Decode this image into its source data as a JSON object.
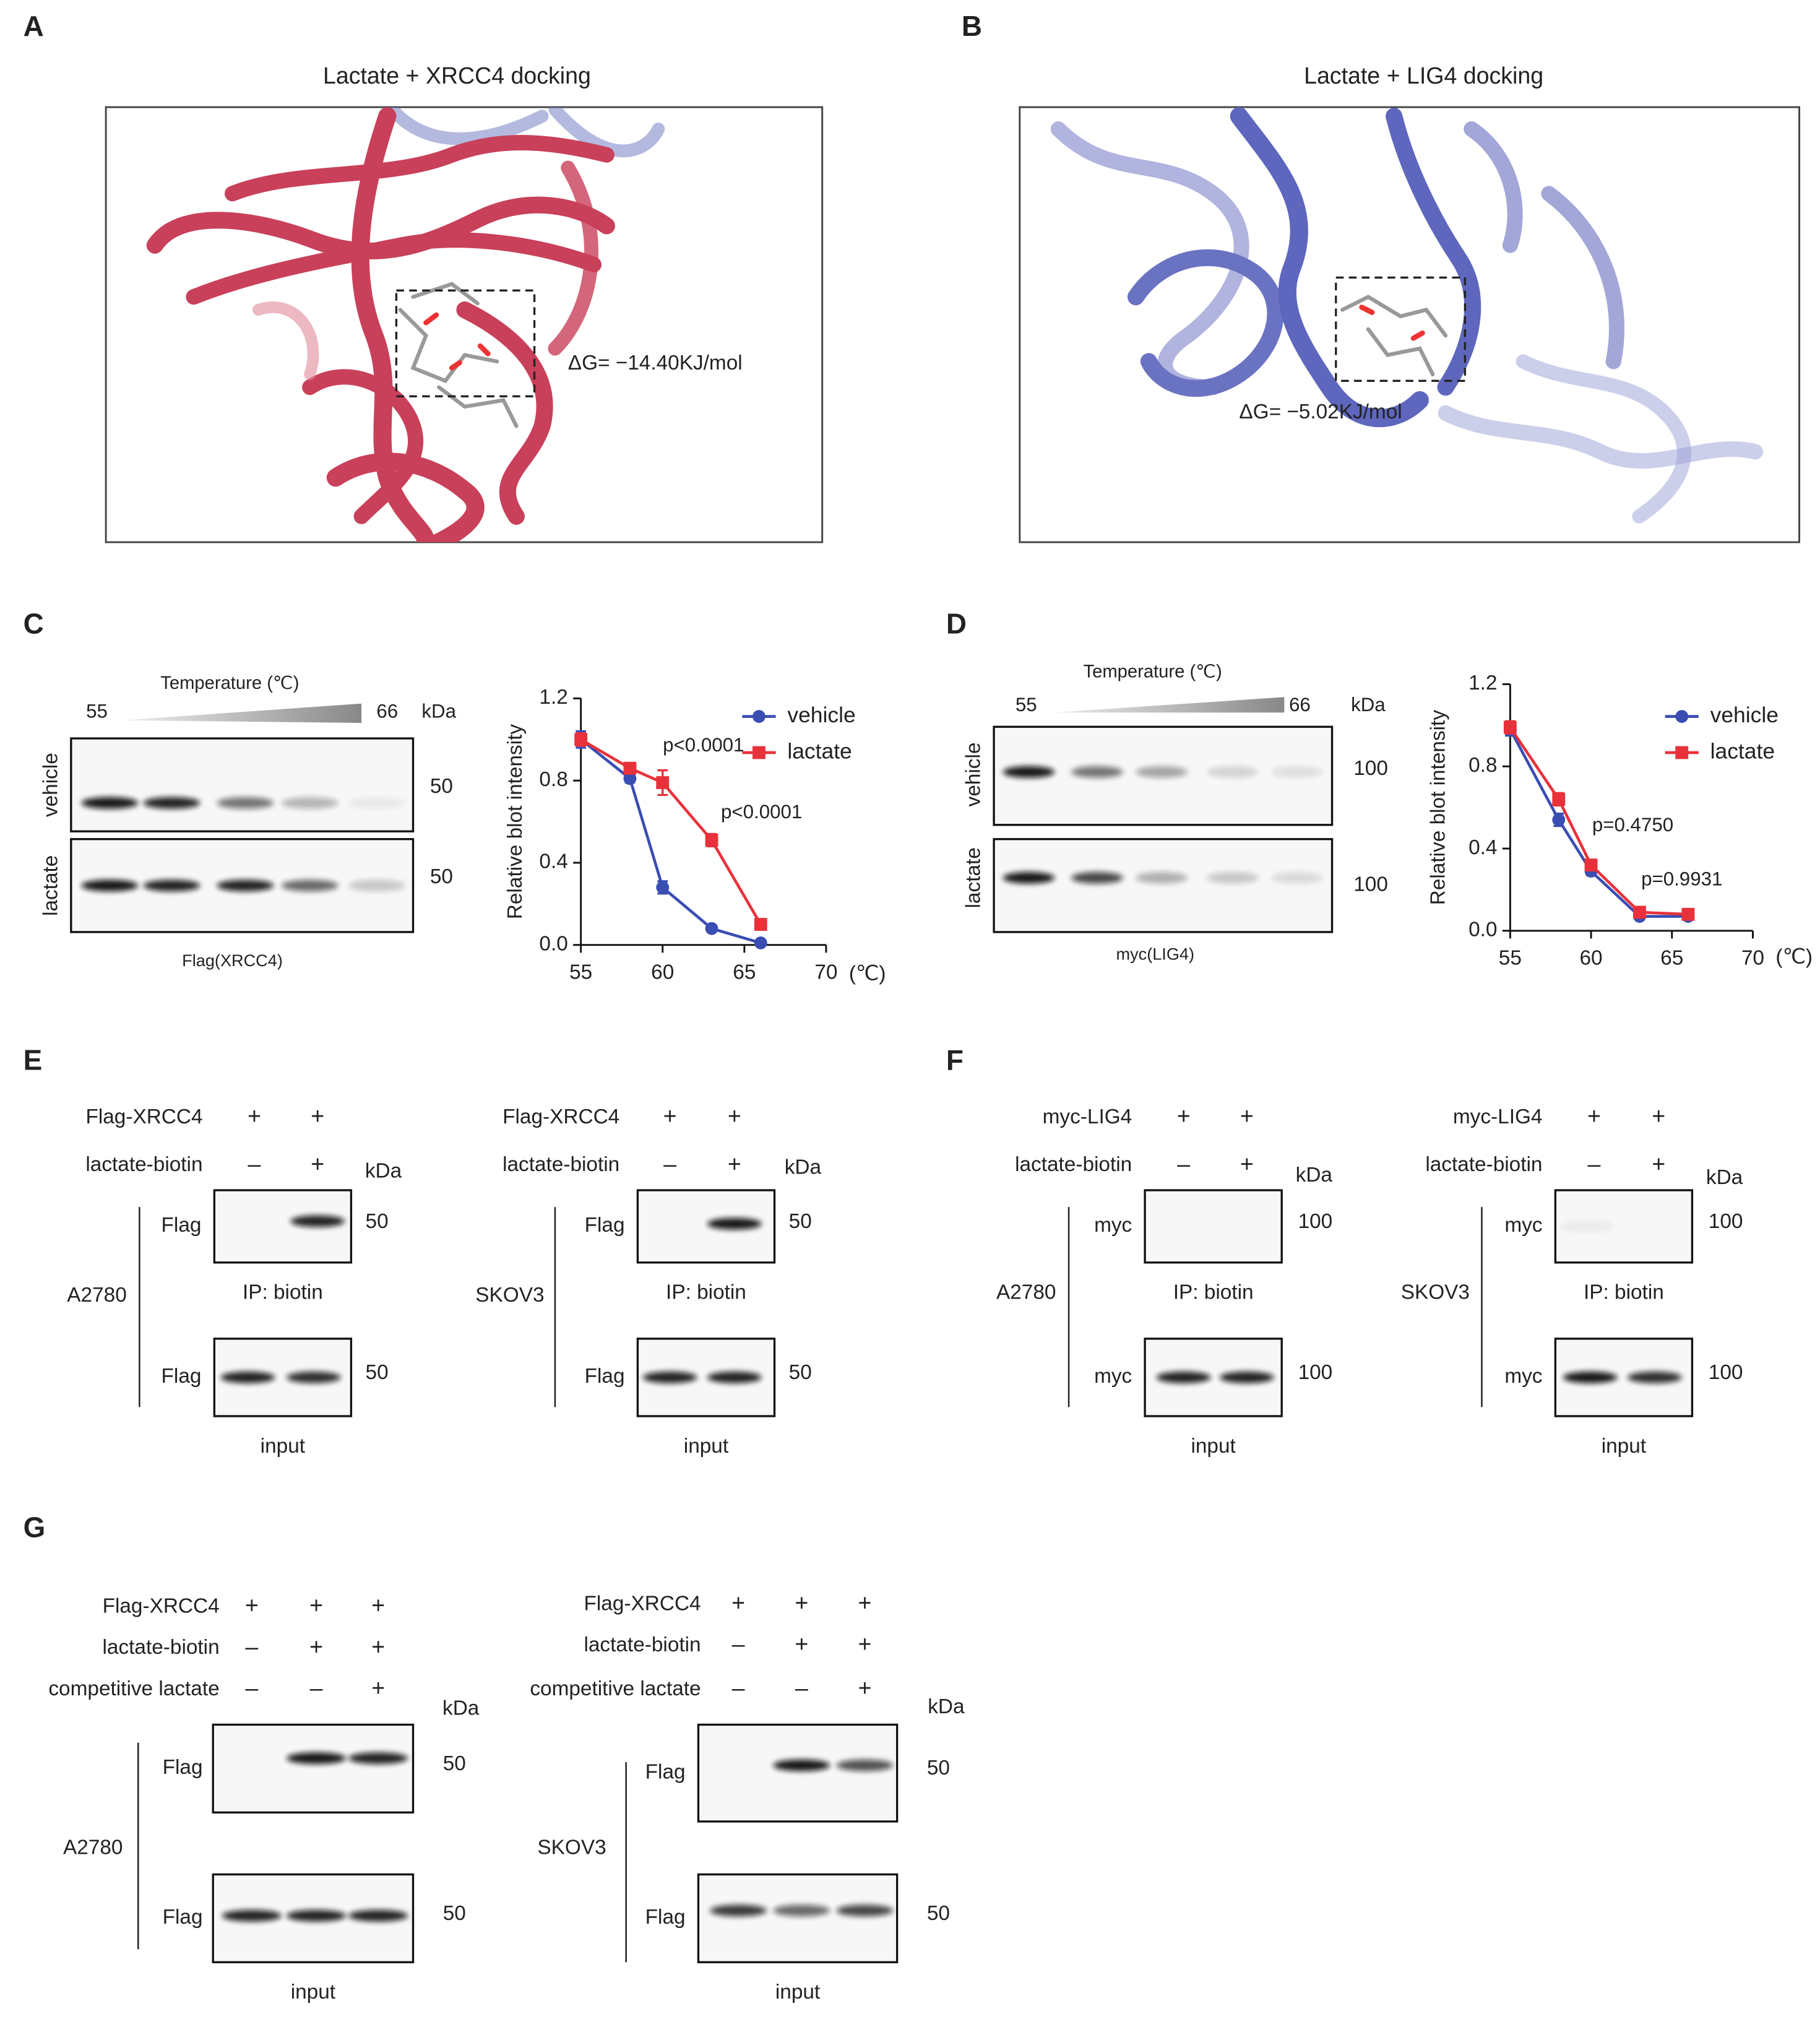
{
  "panel_labels": [
    "A",
    "B",
    "C",
    "D",
    "E",
    "F",
    "G"
  ],
  "docking": [
    {
      "title": "Lactate + XRCC4  docking",
      "energy": "ΔG= −14.40KJ/mol"
    },
    {
      "title": "Lactate + LIG4  docking",
      "energy": "ΔG= −5.02KJ/mol"
    }
  ],
  "cetsa_blots": [
    {
      "temperature_label": "Temperature (℃)",
      "low": "55",
      "high": "66",
      "unit": "kDa",
      "rows": [
        {
          "label": "vehicle",
          "mw": "50"
        },
        {
          "label": "lactate",
          "mw": "50"
        }
      ],
      "caption": "Flag(XRCC4)"
    },
    {
      "temperature_label": "Temperature (℃)",
      "low": "55",
      "high": "66",
      "unit": "kDa",
      "rows": [
        {
          "label": "vehicle",
          "mw": "100"
        },
        {
          "label": "lactate",
          "mw": "100"
        }
      ],
      "caption": "myc(LIG4)"
    }
  ],
  "chart_data": [
    {
      "type": "line",
      "y_label": "Relative blot intensity",
      "x_unit": "(℃)",
      "x": [
        55,
        58,
        60,
        63,
        66
      ],
      "xlim": [
        55,
        70
      ],
      "xticks": [
        55,
        60,
        65,
        70
      ],
      "ylim": [
        0,
        1.2
      ],
      "yticks": [
        {
          "value": 0,
          "label": "0.0"
        },
        0.4,
        0.8,
        1.2
      ],
      "legend": "upper right",
      "series": [
        {
          "name": "vehicle",
          "color": "#3a4db3",
          "marker": "circle",
          "values": [
            1.0,
            0.81,
            0.28,
            0.08,
            0.01
          ],
          "errors": [
            0.04,
            0.02,
            0.03,
            0.01,
            0.01
          ]
        },
        {
          "name": "lactate",
          "color": "#e8313a",
          "marker": "square",
          "values": [
            1.0,
            0.86,
            0.79,
            0.51,
            0.1
          ],
          "errors": [
            0.03,
            0.02,
            0.06,
            0.03,
            0.01
          ]
        }
      ],
      "annotations": [
        "p<0.0001",
        "p<0.0001"
      ]
    },
    {
      "type": "line",
      "y_label": "Relative blot intensity",
      "x_unit": "(℃)",
      "x": [
        55,
        58,
        60,
        63,
        66
      ],
      "xlim": [
        55,
        70
      ],
      "xticks": [
        55,
        60,
        65,
        70
      ],
      "ylim": [
        0,
        1.2
      ],
      "yticks": [
        {
          "value": 0,
          "label": "0.0"
        },
        0.4,
        0.8,
        1.2
      ],
      "legend": "upper right",
      "series": [
        {
          "name": "vehicle",
          "color": "#3a4db3",
          "marker": "circle",
          "values": [
            0.98,
            0.54,
            0.29,
            0.07,
            0.07
          ],
          "errors": [
            0.03,
            0.03,
            0.02,
            0.01,
            0.01
          ]
        },
        {
          "name": "lactate",
          "color": "#e8313a",
          "marker": "square",
          "values": [
            0.99,
            0.64,
            0.32,
            0.09,
            0.08
          ],
          "errors": [
            0.03,
            0.03,
            0.02,
            0.01,
            0.01
          ]
        }
      ],
      "annotations": [
        "p=0.4750",
        "p=0.9931"
      ]
    }
  ],
  "pulldowns": [
    {
      "conditions": [
        {
          "label": "Flag-XRCC4",
          "signs": [
            "+",
            "+"
          ]
        },
        {
          "label": "lactate-biotin",
          "signs": [
            "–",
            "+"
          ]
        }
      ],
      "unit": "kDa",
      "cell_line": "A2780",
      "ip_blot": {
        "label": "Flag",
        "mw": "50",
        "caption": "IP: biotin"
      },
      "input_blot": {
        "label": "Flag",
        "mw": "50",
        "caption": "input"
      }
    },
    {
      "conditions": [
        {
          "label": "Flag-XRCC4",
          "signs": [
            "+",
            "+"
          ]
        },
        {
          "label": "lactate-biotin",
          "signs": [
            "–",
            "+"
          ]
        }
      ],
      "unit": "kDa",
      "cell_line": "SKOV3",
      "ip_blot": {
        "label": "Flag",
        "mw": "50",
        "caption": "IP: biotin"
      },
      "input_blot": {
        "label": "Flag",
        "mw": "50",
        "caption": "input"
      }
    },
    {
      "conditions": [
        {
          "label": "myc-LIG4",
          "signs": [
            "+",
            "+"
          ]
        },
        {
          "label": "lactate-biotin",
          "signs": [
            "–",
            "+"
          ]
        }
      ],
      "unit": "kDa",
      "cell_line": "A2780",
      "ip_blot": {
        "label": "myc",
        "mw": "100",
        "caption": "IP: biotin"
      },
      "input_blot": {
        "label": "myc",
        "mw": "100",
        "caption": "input"
      }
    },
    {
      "conditions": [
        {
          "label": "myc-LIG4",
          "signs": [
            "+",
            "+"
          ]
        },
        {
          "label": "lactate-biotin",
          "signs": [
            "–",
            "+"
          ]
        }
      ],
      "unit": "kDa",
      "cell_line": "SKOV3",
      "ip_blot": {
        "label": "myc",
        "mw": "100",
        "caption": "IP: biotin"
      },
      "input_blot": {
        "label": "myc",
        "mw": "100",
        "caption": "input"
      }
    }
  ],
  "competition": [
    {
      "conditions": [
        {
          "label": "Flag-XRCC4",
          "signs": [
            "+",
            "+",
            "+"
          ]
        },
        {
          "label": "lactate-biotin",
          "signs": [
            "–",
            "+",
            "+"
          ]
        },
        {
          "label": "competitive lactate",
          "signs": [
            "–",
            "–",
            "+"
          ]
        }
      ],
      "unit": "kDa",
      "cell_line": "A2780",
      "ip_blot": {
        "label": "Flag",
        "mw": "50"
      },
      "input_blot": {
        "label": "Flag",
        "mw": "50",
        "caption": "input"
      }
    },
    {
      "conditions": [
        {
          "label": "Flag-XRCC4",
          "signs": [
            "+",
            "+",
            "+"
          ]
        },
        {
          "label": "lactate-biotin",
          "signs": [
            "–",
            "+",
            "+"
          ]
        },
        {
          "label": "competitive lactate",
          "signs": [
            "–",
            "–",
            "+"
          ]
        }
      ],
      "unit": "kDa",
      "cell_line": "SKOV3",
      "ip_blot": {
        "label": "Flag",
        "mw": "50"
      },
      "input_blot": {
        "label": "Flag",
        "mw": "50",
        "caption": "input"
      }
    }
  ]
}
